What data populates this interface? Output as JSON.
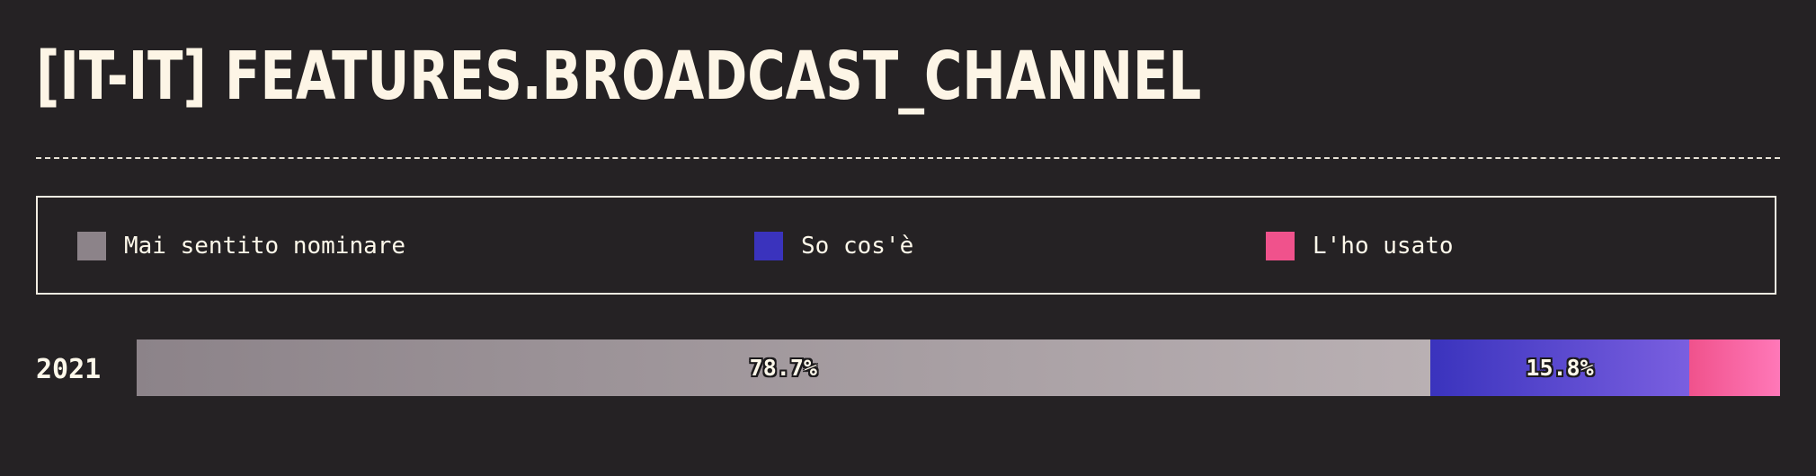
{
  "title": "[IT-IT] FEATURES.BROADCAST_CHANNEL",
  "legend": [
    {
      "label": "Mai sentito nominare",
      "color": "#8c8389"
    },
    {
      "label": "So cos'è",
      "color": "#3a33bd"
    },
    {
      "label": "L'ho usato",
      "color": "#f0528c"
    }
  ],
  "colors": {
    "never_heard": [
      "#8c8389",
      "#b9b0b3"
    ],
    "know_what": [
      "#3a33bd",
      "#7a5fe0"
    ],
    "used": [
      "#f0528c",
      "#ff78b8"
    ]
  },
  "chart_data": {
    "type": "bar",
    "orientation": "horizontal",
    "stacked": true,
    "normalized": true,
    "categories": [
      "2021"
    ],
    "series": [
      {
        "name": "Mai sentito nominare",
        "values": [
          78.7
        ],
        "label": "78.7%"
      },
      {
        "name": "So cos'è",
        "values": [
          15.8
        ],
        "label": "15.8%"
      },
      {
        "name": "L'ho usato",
        "values": [
          5.5
        ],
        "label": ""
      }
    ],
    "legend_position": "top"
  }
}
